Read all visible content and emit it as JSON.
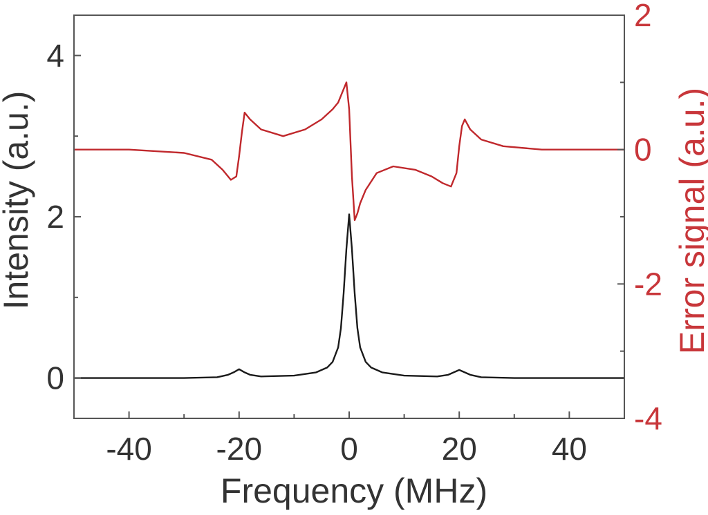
{
  "chart_data": {
    "type": "line",
    "title": "",
    "xlabel": "Frequency (MHz)",
    "ylabel": "Intensity (a.u.)",
    "ylabel_right": "Error signal (a.u.)",
    "xlim": [
      -50,
      50
    ],
    "ylim": [
      -0.5,
      4.5
    ],
    "ylim_right": [
      -4,
      2
    ],
    "xticks": [
      -40,
      -20,
      0,
      20,
      40
    ],
    "yticks": [
      0,
      2,
      4
    ],
    "yticks_minor": [
      1,
      3
    ],
    "yticks_right": [
      -4,
      -2,
      0,
      2
    ],
    "yticks_right_minor": [
      -3,
      -1,
      1
    ],
    "grid": false,
    "legend": "none",
    "colors": {
      "intensity": "#1a1a1a",
      "error": "#c0282c",
      "axis": "#555555",
      "right_axis_labels": "#c8363a"
    },
    "series": [
      {
        "axis": "left",
        "x": [
          -50,
          -40,
          -30,
          -24,
          -22,
          -21,
          -20,
          -19,
          -18,
          -16,
          -10,
          -6,
          -4,
          -3,
          -2,
          -1.5,
          -1,
          -0.5,
          0,
          0.5,
          1,
          1.5,
          2,
          3,
          4,
          6,
          10,
          16,
          18,
          19,
          20,
          21,
          22,
          24,
          30,
          40,
          50
        ],
        "y": [
          0,
          0,
          0,
          0.01,
          0.04,
          0.07,
          0.11,
          0.07,
          0.04,
          0.02,
          0.03,
          0.07,
          0.13,
          0.2,
          0.38,
          0.62,
          1.05,
          1.6,
          2.03,
          1.6,
          1.05,
          0.62,
          0.38,
          0.2,
          0.13,
          0.07,
          0.03,
          0.02,
          0.04,
          0.07,
          0.1,
          0.07,
          0.04,
          0.01,
          0,
          0,
          0
        ]
      },
      {
        "axis": "right",
        "x": [
          -50,
          -40,
          -30,
          -25,
          -23,
          -21.5,
          -20.5,
          -20,
          -19.5,
          -19,
          -18,
          -16,
          -12,
          -8,
          -5,
          -3,
          -2,
          -1,
          -0.5,
          0,
          0.5,
          1,
          1.5,
          2,
          3,
          5,
          8,
          12,
          15,
          17,
          18.5,
          19.5,
          20,
          20.5,
          21,
          22,
          24,
          28,
          35,
          45,
          50
        ],
        "y": [
          0,
          0,
          -0.05,
          -0.15,
          -0.3,
          -0.45,
          -0.4,
          -0.1,
          0.25,
          0.55,
          0.45,
          0.3,
          0.2,
          0.3,
          0.45,
          0.6,
          0.7,
          0.9,
          1.0,
          0.6,
          -0.4,
          -1.05,
          -0.95,
          -0.8,
          -0.6,
          -0.35,
          -0.25,
          -0.3,
          -0.4,
          -0.5,
          -0.55,
          -0.35,
          0.05,
          0.35,
          0.45,
          0.3,
          0.15,
          0.05,
          0,
          0,
          0
        ]
      }
    ]
  }
}
